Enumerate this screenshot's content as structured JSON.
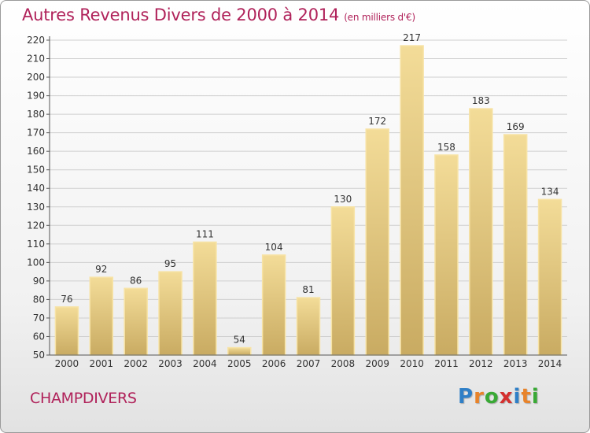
{
  "title": "Autres Revenus Divers de 2000 à 2014",
  "subtitle": "(en milliers d'€)",
  "location": "CHAMPDIVERS",
  "brand": "Proxiti",
  "brand_letters": [
    "P",
    "r",
    "o",
    "x",
    "i",
    "t",
    "i"
  ],
  "brand_colors": [
    "#2f7fc7",
    "#e8832a",
    "#39a935",
    "#d4302f",
    "#2f7fc7",
    "#e8832a",
    "#39a935"
  ],
  "colors": {
    "title": "#b0225a",
    "bar_fill_top": "#f3dc98",
    "bar_fill_bottom": "#c9ab62",
    "bar_stroke": "#f7e3a6",
    "grid": "#cfcfcf"
  },
  "chart_data": {
    "type": "bar",
    "categories": [
      "2000",
      "2001",
      "2002",
      "2003",
      "2004",
      "2005",
      "2006",
      "2007",
      "2008",
      "2009",
      "2010",
      "2011",
      "2012",
      "2013",
      "2014"
    ],
    "values": [
      76,
      92,
      86,
      95,
      111,
      54,
      104,
      81,
      130,
      172,
      217,
      158,
      183,
      169,
      134
    ],
    "ylim": [
      50,
      220
    ],
    "yticks": [
      50,
      60,
      70,
      80,
      90,
      100,
      110,
      120,
      130,
      140,
      150,
      160,
      170,
      180,
      190,
      200,
      210,
      220
    ],
    "grid": true,
    "data_labels": true
  }
}
